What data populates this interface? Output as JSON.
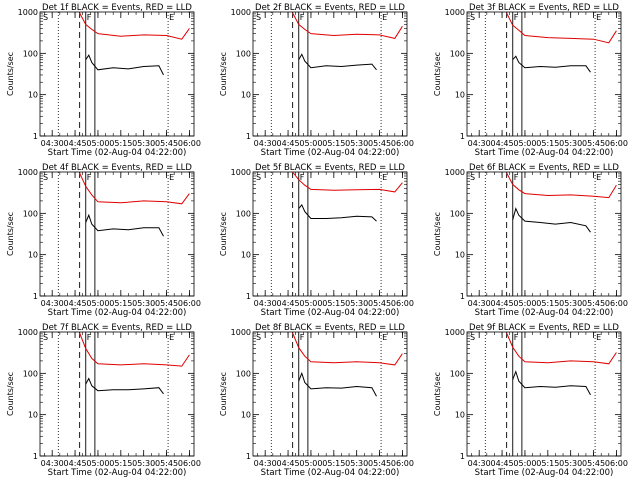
{
  "colors": {
    "events": "#000000",
    "lld": "#e00000",
    "axes": "#000000"
  },
  "chart_data": [
    {
      "type": "line",
      "title": "Det 1f BLACK = Events, RED = LLD",
      "xlabel": "Start Time (02-Aug-04 04:22:00)",
      "ylabel": "Counts/sec",
      "yscale": "log",
      "ylim": [
        1,
        1000
      ],
      "xlim": [
        "04:22",
        "06:03"
      ],
      "xticks": [
        "04:30",
        "04:45",
        "05:00",
        "05:15",
        "05:30",
        "05:45",
        "06:00"
      ],
      "yticks": [
        "1",
        "10",
        "100",
        "1000"
      ],
      "markers": [
        "S",
        "F",
        "E"
      ],
      "dotted_lines": [
        "04:34",
        "05:46"
      ],
      "dashed_line": "04:48",
      "solid_lines": [
        "04:52",
        "04:58"
      ],
      "series": [
        {
          "series_key": "black",
          "x": [
            "04:52",
            "04:54",
            "04:56",
            "05:00",
            "05:10",
            "05:20",
            "05:30",
            "05:40",
            "05:43"
          ],
          "y": [
            70,
            90,
            60,
            40,
            45,
            42,
            48,
            50,
            30
          ]
        },
        {
          "series_key": "red",
          "x": [
            "04:48",
            "04:52",
            "04:56",
            "05:00",
            "05:15",
            "05:30",
            "05:45",
            "05:55",
            "06:00"
          ],
          "y": [
            950,
            500,
            380,
            300,
            260,
            280,
            270,
            220,
            400
          ]
        }
      ]
    },
    {
      "type": "line",
      "title": "Det 2f BLACK = Events, RED = LLD",
      "xlabel": "Start Time (02-Aug-04 04:22:00)",
      "ylabel": "Counts/sec",
      "yscale": "log",
      "ylim": [
        1,
        1000
      ],
      "xlim": [
        "04:22",
        "06:03"
      ],
      "xticks": [
        "04:30",
        "04:45",
        "05:00",
        "05:15",
        "05:30",
        "05:45",
        "06:00"
      ],
      "yticks": [
        "1",
        "10",
        "100",
        "1000"
      ],
      "markers": [
        "S",
        "F",
        "E"
      ],
      "dotted_lines": [
        "04:34",
        "05:46"
      ],
      "dashed_line": "04:48",
      "solid_lines": [
        "04:52",
        "04:58"
      ],
      "series": [
        {
          "series_key": "black",
          "x": [
            "04:52",
            "04:54",
            "04:56",
            "05:00",
            "05:10",
            "05:20",
            "05:30",
            "05:40",
            "05:43"
          ],
          "y": [
            70,
            95,
            65,
            45,
            50,
            48,
            52,
            55,
            40
          ]
        },
        {
          "series_key": "red",
          "x": [
            "04:48",
            "04:52",
            "04:56",
            "05:00",
            "05:15",
            "05:30",
            "05:45",
            "05:55",
            "06:00"
          ],
          "y": [
            950,
            500,
            380,
            300,
            270,
            290,
            280,
            230,
            450
          ]
        }
      ]
    },
    {
      "type": "line",
      "title": "Det 3f BLACK = Events, RED = LLD",
      "xlabel": "Start Time (02-Aug-04 04:22:00)",
      "ylabel": "Counts/sec",
      "yscale": "log",
      "ylim": [
        1,
        1000
      ],
      "xlim": [
        "04:22",
        "06:03"
      ],
      "xticks": [
        "04:30",
        "04:45",
        "05:00",
        "05:15",
        "05:30",
        "05:45",
        "06:00"
      ],
      "yticks": [
        "1",
        "10",
        "100",
        "1000"
      ],
      "markers": [
        "S",
        "F",
        "E"
      ],
      "dotted_lines": [
        "04:34",
        "05:46"
      ],
      "dashed_line": "04:48",
      "solid_lines": [
        "04:52",
        "04:58"
      ],
      "series": [
        {
          "series_key": "black",
          "x": [
            "04:52",
            "04:54",
            "04:56",
            "05:00",
            "05:10",
            "05:20",
            "05:30",
            "05:40",
            "05:43"
          ],
          "y": [
            70,
            85,
            60,
            45,
            48,
            46,
            50,
            50,
            35
          ]
        },
        {
          "series_key": "red",
          "x": [
            "04:48",
            "04:52",
            "04:56",
            "05:00",
            "05:15",
            "05:30",
            "05:45",
            "05:55",
            "06:00"
          ],
          "y": [
            950,
            480,
            360,
            270,
            240,
            230,
            220,
            180,
            350
          ]
        }
      ]
    },
    {
      "type": "line",
      "title": "Det 4f BLACK = Events, RED = LLD",
      "xlabel": "Start Time (02-Aug-04 04:22:00)",
      "ylabel": "Counts/sec",
      "yscale": "log",
      "ylim": [
        1,
        1000
      ],
      "xlim": [
        "04:22",
        "06:03"
      ],
      "xticks": [
        "04:30",
        "04:45",
        "05:00",
        "05:15",
        "05:30",
        "05:45",
        "06:00"
      ],
      "yticks": [
        "1",
        "10",
        "100",
        "1000"
      ],
      "markers": [
        "S",
        "F",
        "E"
      ],
      "dotted_lines": [
        "04:34",
        "05:46"
      ],
      "dashed_line": "04:48",
      "solid_lines": [
        "04:52",
        "04:58"
      ],
      "series": [
        {
          "series_key": "black",
          "x": [
            "04:52",
            "04:54",
            "04:56",
            "05:00",
            "05:10",
            "05:20",
            "05:30",
            "05:40",
            "05:43"
          ],
          "y": [
            60,
            90,
            55,
            38,
            42,
            40,
            45,
            45,
            28
          ]
        },
        {
          "series_key": "red",
          "x": [
            "04:48",
            "04:52",
            "04:56",
            "05:00",
            "05:15",
            "05:30",
            "05:45",
            "05:55",
            "06:00"
          ],
          "y": [
            950,
            450,
            280,
            190,
            180,
            200,
            190,
            170,
            300
          ]
        }
      ]
    },
    {
      "type": "line",
      "title": "Det 5f BLACK = Events, RED = LLD",
      "xlabel": "Start Time (02-Aug-04 04:22:00)",
      "ylabel": "Counts/sec",
      "yscale": "log",
      "ylim": [
        1,
        1000
      ],
      "xlim": [
        "04:22",
        "06:03"
      ],
      "xticks": [
        "04:30",
        "04:45",
        "05:00",
        "05:15",
        "05:30",
        "05:45",
        "06:00"
      ],
      "yticks": [
        "1",
        "10",
        "100",
        "1000"
      ],
      "markers": [
        "S",
        "F",
        "E"
      ],
      "dotted_lines": [
        "04:34",
        "05:46"
      ],
      "dashed_line": "04:48",
      "solid_lines": [
        "04:52",
        "04:58"
      ],
      "series": [
        {
          "series_key": "black",
          "x": [
            "04:52",
            "04:54",
            "04:56",
            "05:00",
            "05:10",
            "05:20",
            "05:30",
            "05:40",
            "05:43"
          ],
          "y": [
            130,
            160,
            110,
            75,
            75,
            78,
            85,
            82,
            65
          ]
        },
        {
          "series_key": "red",
          "x": [
            "04:48",
            "04:52",
            "04:56",
            "05:00",
            "05:15",
            "05:30",
            "05:45",
            "05:55",
            "06:00"
          ],
          "y": [
            1000,
            650,
            480,
            380,
            360,
            370,
            380,
            330,
            550
          ]
        }
      ]
    },
    {
      "type": "line",
      "title": "Det 6f BLACK = Events, RED = LLD",
      "xlabel": "Start Time (02-Aug-04 04:22:00)",
      "ylabel": "Counts/sec",
      "yscale": "log",
      "ylim": [
        1,
        1000
      ],
      "xlim": [
        "04:22",
        "06:03"
      ],
      "xticks": [
        "04:30",
        "04:45",
        "05:00",
        "05:15",
        "05:30",
        "05:45",
        "06:00"
      ],
      "yticks": [
        "1",
        "10",
        "100",
        "1000"
      ],
      "markers": [
        "S",
        "F",
        "E"
      ],
      "dotted_lines": [
        "04:34",
        "05:46"
      ],
      "dashed_line": "04:48",
      "solid_lines": [
        "04:52",
        "04:58"
      ],
      "series": [
        {
          "series_key": "black",
          "x": [
            "04:52",
            "04:54",
            "04:56",
            "05:00",
            "05:10",
            "05:20",
            "05:30",
            "05:40",
            "05:43"
          ],
          "y": [
            70,
            130,
            90,
            65,
            60,
            55,
            60,
            50,
            35
          ]
        },
        {
          "series_key": "red",
          "x": [
            "04:48",
            "04:52",
            "04:56",
            "05:00",
            "05:15",
            "05:30",
            "05:45",
            "05:55",
            "06:00"
          ],
          "y": [
            950,
            500,
            370,
            300,
            270,
            280,
            260,
            240,
            480
          ]
        }
      ]
    },
    {
      "type": "line",
      "title": "Det 7f BLACK = Events, RED = LLD",
      "xlabel": "Start Time (02-Aug-04 04:22:00)",
      "ylabel": "Counts/sec",
      "yscale": "log",
      "ylim": [
        1,
        1000
      ],
      "xlim": [
        "04:22",
        "06:03"
      ],
      "xticks": [
        "04:30",
        "04:45",
        "05:00",
        "05:15",
        "05:30",
        "05:45",
        "06:00"
      ],
      "yticks": [
        "1",
        "10",
        "100",
        "1000"
      ],
      "markers": [
        "S",
        "F",
        "E"
      ],
      "dotted_lines": [
        "04:34",
        "05:46"
      ],
      "dashed_line": "04:48",
      "solid_lines": [
        "04:52",
        "04:58"
      ],
      "series": [
        {
          "series_key": "black",
          "x": [
            "04:52",
            "04:54",
            "04:56",
            "05:00",
            "05:10",
            "05:20",
            "05:30",
            "05:40",
            "05:43"
          ],
          "y": [
            55,
            75,
            50,
            38,
            40,
            40,
            42,
            45,
            32
          ]
        },
        {
          "series_key": "red",
          "x": [
            "04:48",
            "04:52",
            "04:56",
            "05:00",
            "05:15",
            "05:30",
            "05:45",
            "05:55",
            "06:00"
          ],
          "y": [
            950,
            400,
            230,
            170,
            160,
            170,
            160,
            150,
            280
          ]
        }
      ]
    },
    {
      "type": "line",
      "title": "Det 8f BLACK = Events, RED = LLD",
      "xlabel": "Start Time (02-Aug-04 04:22:00)",
      "ylabel": "Counts/sec",
      "yscale": "log",
      "ylim": [
        1,
        1000
      ],
      "xlim": [
        "04:22",
        "06:03"
      ],
      "xticks": [
        "04:30",
        "04:45",
        "05:00",
        "05:15",
        "05:30",
        "05:45",
        "06:00"
      ],
      "yticks": [
        "1",
        "10",
        "100",
        "1000"
      ],
      "markers": [
        "S",
        "F",
        "E"
      ],
      "dotted_lines": [
        "04:34",
        "05:46"
      ],
      "dashed_line": "04:48",
      "solid_lines": [
        "04:52",
        "04:58"
      ],
      "series": [
        {
          "series_key": "black",
          "x": [
            "04:52",
            "04:54",
            "04:56",
            "05:00",
            "05:10",
            "05:20",
            "05:30",
            "05:40",
            "05:43"
          ],
          "y": [
            65,
            100,
            60,
            42,
            45,
            44,
            48,
            45,
            28
          ]
        },
        {
          "series_key": "red",
          "x": [
            "04:48",
            "04:52",
            "04:56",
            "05:00",
            "05:15",
            "05:30",
            "05:45",
            "05:55",
            "06:00"
          ],
          "y": [
            950,
            420,
            260,
            190,
            180,
            190,
            180,
            160,
            300
          ]
        }
      ]
    },
    {
      "type": "line",
      "title": "Det 9f BLACK = Events, RED = LLD",
      "xlabel": "Start Time (02-Aug-04 04:22:00)",
      "ylabel": "Counts/sec",
      "yscale": "log",
      "ylim": [
        1,
        1000
      ],
      "xlim": [
        "04:22",
        "06:03"
      ],
      "xticks": [
        "04:30",
        "04:45",
        "05:00",
        "05:15",
        "05:30",
        "05:45",
        "06:00"
      ],
      "yticks": [
        "1",
        "10",
        "100",
        "1000"
      ],
      "markers": [
        "S",
        "F",
        "E"
      ],
      "dotted_lines": [
        "04:34",
        "05:46"
      ],
      "dashed_line": "04:48",
      "solid_lines": [
        "04:52",
        "04:58"
      ],
      "series": [
        {
          "series_key": "black",
          "x": [
            "04:52",
            "04:54",
            "04:56",
            "05:00",
            "05:10",
            "05:20",
            "05:30",
            "05:40",
            "05:43"
          ],
          "y": [
            70,
            110,
            65,
            45,
            48,
            46,
            50,
            48,
            30
          ]
        },
        {
          "series_key": "red",
          "x": [
            "04:48",
            "04:52",
            "04:56",
            "05:00",
            "05:15",
            "05:30",
            "05:45",
            "05:55",
            "06:00"
          ],
          "y": [
            950,
            430,
            260,
            190,
            180,
            200,
            190,
            170,
            320
          ]
        }
      ]
    }
  ]
}
